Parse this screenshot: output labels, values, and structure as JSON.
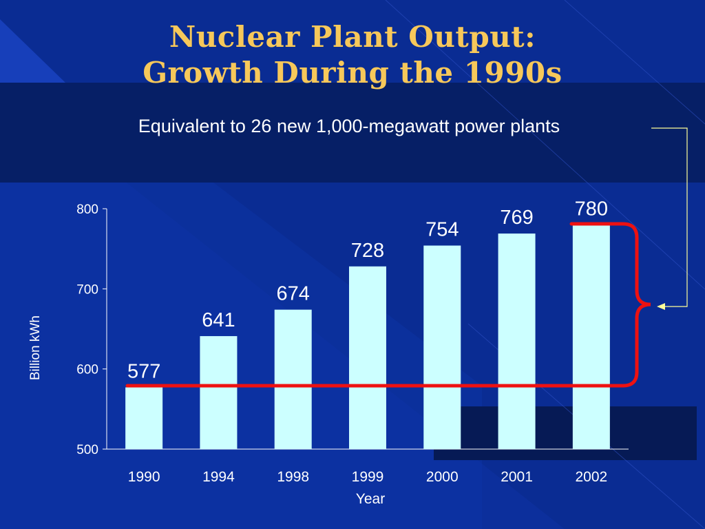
{
  "slide": {
    "title_line1": "Nuclear Plant Output:",
    "title_line2": "Growth During the 1990s",
    "subtitle": "Equivalent to 26 new 1,000-megawatt power plants"
  },
  "colors": {
    "background": "#0c2f9c",
    "band": "#061f66",
    "title": "#f7c85a",
    "bar": "#ccffff",
    "highlight": "#ee1111",
    "connector": "#ffff99",
    "text": "#ffffff"
  },
  "chart_data": {
    "type": "bar",
    "categories": [
      "1990",
      "1994",
      "1998",
      "1999",
      "2000",
      "2001",
      "2002"
    ],
    "values": [
      577,
      641,
      674,
      728,
      754,
      769,
      780
    ],
    "xlabel": "Year",
    "ylabel": "Billion kWh",
    "ylim": [
      500,
      800
    ],
    "yticks": [
      "500",
      "600",
      "700",
      "800"
    ],
    "data_labels": [
      "577",
      "641",
      "674",
      "728",
      "754",
      "769",
      "780"
    ],
    "grid": false,
    "legend": "none",
    "annotation": "bracket spanning 577 to 780 linked to subtitle"
  }
}
